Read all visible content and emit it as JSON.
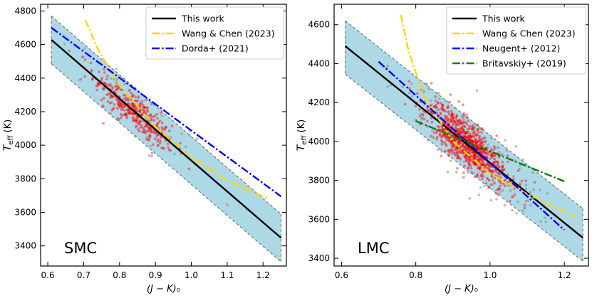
{
  "chart_data": [
    {
      "type": "scatter",
      "panel_label": "SMC",
      "xlabel": "(J − K)₀",
      "ylabel": "T_eff (K)",
      "xlim": [
        0.58,
        1.265
      ],
      "ylim": [
        3280,
        4840
      ],
      "xticks": [
        0.6,
        0.7,
        0.8,
        0.9,
        1.0,
        1.1,
        1.2
      ],
      "xtick_labels": [
        "0.6",
        "0.7",
        "0.8",
        "0.9",
        "1.0",
        "1.1",
        "1.2"
      ],
      "yticks": [
        3400,
        3600,
        3800,
        4000,
        4200,
        4400,
        4600,
        4800
      ],
      "ytick_labels": [
        "3400",
        "3600",
        "3800",
        "4000",
        "4200",
        "4400",
        "4600",
        "4800"
      ],
      "band": {
        "x": [
          0.61,
          1.25
        ],
        "lower": [
          4485,
          3305
        ],
        "upper": [
          4770,
          3590
        ],
        "color": "#add8e6"
      },
      "series": [
        {
          "name": "This work",
          "style": "solid",
          "color": "#000000",
          "x": [
            0.61,
            1.25
          ],
          "y": [
            4628,
            3448
          ]
        },
        {
          "name": "Wang & Chen (2023)",
          "style": "dashdot",
          "color": "#ffd700",
          "x": [
            0.705,
            0.74,
            0.8,
            0.9,
            1.0,
            1.1,
            1.21
          ],
          "y": [
            4745,
            4570,
            4355,
            4110,
            3930,
            3790,
            3685
          ]
        },
        {
          "name": "Dorda+ (2021)",
          "style": "dashdot",
          "color": "#0000ff",
          "x": [
            0.61,
            1.25
          ],
          "y": [
            4700,
            3695
          ]
        }
      ],
      "scatter": {
        "red": {
          "color": "#ff0000",
          "n": 380,
          "x_center": 0.84,
          "x_spread": 0.055,
          "x_min": 0.66,
          "x_max": 1.02,
          "y_offset_sd": 55
        },
        "gray": {
          "color": "#888888",
          "n": 45,
          "x_center": 0.85,
          "x_spread": 0.11,
          "x_min": 0.64,
          "x_max": 1.1,
          "y_offset_sd": 110
        }
      },
      "legend": {
        "position": "top-right",
        "entries": [
          "This work",
          "Wang & Chen (2023)",
          "Dorda+ (2021)"
        ]
      }
    },
    {
      "type": "scatter",
      "panel_label": "LMC",
      "xlabel": "(J − K)₀",
      "ylabel": "T_eff (K)",
      "xlim": [
        0.58,
        1.265
      ],
      "ylim": [
        3360,
        4705
      ],
      "xticks": [
        0.6,
        0.8,
        1.0,
        1.2
      ],
      "xtick_labels": [
        "0.6",
        "0.8",
        "1.0",
        "1.2"
      ],
      "yticks": [
        3400,
        3600,
        3800,
        4000,
        4200,
        4400,
        4600
      ],
      "ytick_labels": [
        "3400",
        "3600",
        "3800",
        "4000",
        "4200",
        "4400",
        "4600"
      ],
      "band": {
        "x": [
          0.61,
          1.25
        ],
        "lower": [
          4345,
          3385
        ],
        "upper": [
          4620,
          3655
        ],
        "color": "#add8e6"
      },
      "series": [
        {
          "name": "This work",
          "style": "solid",
          "color": "#000000",
          "x": [
            0.61,
            1.25
          ],
          "y": [
            4490,
            3505
          ]
        },
        {
          "name": "Wang & Chen (2023)",
          "style": "dashdot",
          "color": "#ffd700",
          "x": [
            0.76,
            0.78,
            0.82,
            0.9,
            1.0,
            1.1,
            1.2,
            1.23
          ],
          "y": [
            4650,
            4470,
            4240,
            4000,
            3835,
            3730,
            3640,
            3610
          ]
        },
        {
          "name": "Neugent+ (2012)",
          "style": "dashdot",
          "color": "#0000ff",
          "x": [
            0.7,
            1.2
          ],
          "y": [
            4410,
            3545
          ]
        },
        {
          "name": "Britavskiy+ (2019)",
          "style": "dashdot",
          "color": "#008000",
          "x": [
            0.8,
            1.2
          ],
          "y": [
            4105,
            3795
          ]
        }
      ],
      "scatter": {
        "red": {
          "color": "#ff0000",
          "n": 900,
          "x_center": 0.935,
          "x_spread": 0.055,
          "x_min": 0.76,
          "x_max": 1.12,
          "y_offset_sd": 60
        },
        "gray": {
          "color": "#888888",
          "n": 170,
          "x_center": 0.95,
          "x_spread": 0.09,
          "x_min": 0.72,
          "x_max": 1.21,
          "y_offset_sd": 90
        }
      },
      "legend": {
        "position": "top-right",
        "entries": [
          "This work",
          "Wang & Chen (2023)",
          "Neugent+ (2012)",
          "Britavskiy+ (2019)"
        ]
      }
    }
  ]
}
